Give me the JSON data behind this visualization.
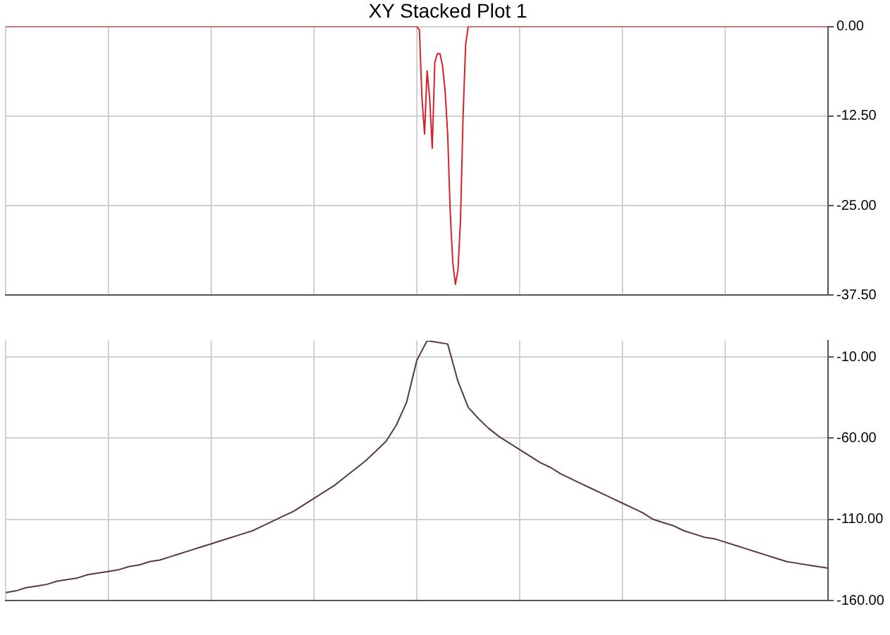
{
  "chart_data": [
    {
      "type": "line",
      "title": "XY Stacked Plot 1",
      "categories": [
        null,
        null,
        null,
        null,
        null,
        null,
        null,
        null,
        null,
        null,
        null,
        null,
        null,
        null,
        null,
        null,
        null,
        null,
        null,
        null,
        null,
        null,
        null,
        null,
        null,
        null,
        null,
        null,
        null,
        null,
        null,
        null,
        null,
        null,
        null,
        null,
        null,
        null,
        null,
        null,
        null,
        null,
        null,
        null,
        null,
        null,
        null,
        null,
        null,
        null,
        null,
        null,
        null,
        null,
        null,
        null,
        null,
        null,
        null,
        null,
        null,
        null,
        null,
        null,
        null,
        null,
        null,
        null,
        null,
        null,
        null,
        null,
        null,
        null,
        null,
        null,
        null,
        null,
        null,
        null,
        null,
        null,
        null,
        null,
        null,
        null,
        null,
        null,
        null,
        null,
        null,
        null,
        null,
        null,
        null,
        null,
        null,
        null,
        null,
        null,
        null,
        null,
        null,
        null,
        null,
        null,
        null,
        null,
        null,
        null,
        null,
        null,
        null,
        null,
        null,
        null,
        null,
        null,
        null,
        null,
        null,
        null,
        null,
        null,
        null,
        null,
        null,
        null,
        null,
        null,
        null,
        null,
        null,
        null,
        null,
        null,
        null,
        null,
        null,
        null,
        null,
        null,
        null,
        null,
        null,
        null,
        null,
        null,
        null,
        null,
        null,
        null,
        null,
        null,
        null,
        null,
        null,
        null,
        null,
        null,
        null,
        null,
        null,
        null,
        null,
        null,
        null,
        null,
        null,
        null,
        null,
        null,
        null,
        null,
        null,
        null,
        null,
        null,
        null,
        null,
        null,
        null,
        null,
        null,
        null,
        null,
        null,
        null,
        null,
        null,
        null,
        null,
        null,
        null,
        null,
        null,
        null,
        null,
        null,
        null,
        null,
        null,
        null,
        null,
        null,
        null,
        null,
        null,
        null,
        null,
        null,
        null,
        null,
        null,
        null,
        null,
        null,
        null,
        null,
        null,
        null,
        null,
        null,
        null,
        null,
        null,
        null,
        null,
        null,
        null,
        null,
        null,
        null,
        null,
        null,
        null,
        null,
        null,
        null,
        null,
        null,
        null,
        null,
        null,
        null,
        null,
        null,
        null,
        null,
        null,
        null,
        null,
        null,
        null,
        null,
        null,
        null,
        null,
        null,
        null,
        null,
        null,
        null,
        null,
        null,
        null,
        null,
        null,
        null,
        null,
        null,
        null,
        null,
        null,
        null,
        null,
        null,
        null,
        null,
        null,
        null,
        null,
        null,
        null,
        null,
        null,
        null,
        null,
        null,
        null,
        null,
        null,
        null,
        null,
        null,
        null,
        null,
        null,
        null,
        null,
        null,
        null,
        null,
        null,
        null,
        null,
        null,
        null,
        null,
        null,
        null,
        null,
        null,
        null,
        null,
        null,
        null,
        null,
        null,
        null,
        null
      ],
      "ylim": [
        -37.5,
        0
      ],
      "yticks": [
        {
          "value": 0,
          "label": "0.00"
        },
        {
          "value": -12.5,
          "label": "-12.50"
        },
        {
          "value": -25,
          "label": "-25.00"
        },
        {
          "value": -37.5,
          "label": "-37.50"
        }
      ],
      "grid": true,
      "marker": "none",
      "line_style": "solid",
      "series": [
        {
          "color": "#d9202a",
          "values": [
            0,
            0,
            0,
            0,
            0,
            0,
            0,
            0,
            0,
            0,
            0,
            0,
            0,
            0,
            0,
            0,
            0,
            0,
            0,
            0,
            0,
            0,
            0,
            0,
            0,
            0,
            0,
            0,
            0,
            0,
            0,
            0,
            0,
            0,
            0,
            0,
            0,
            0,
            0,
            0,
            0,
            0,
            0,
            0,
            0,
            0,
            0,
            0,
            0,
            0,
            0,
            0,
            0,
            0,
            0,
            0,
            0,
            0,
            0,
            0,
            0,
            0,
            0,
            0,
            0,
            0,
            0,
            0,
            0,
            0,
            0,
            0,
            0,
            0,
            0,
            0,
            0,
            0,
            0,
            0,
            0,
            0,
            0,
            0,
            0,
            0,
            0,
            0,
            0,
            0,
            0,
            0,
            0,
            0,
            0,
            0,
            0,
            0,
            0,
            0,
            0,
            0,
            0,
            0,
            0,
            0,
            0,
            0,
            0,
            0,
            0,
            0,
            0,
            0,
            0,
            0,
            0,
            0,
            0,
            0,
            0,
            0,
            0,
            0,
            0,
            0,
            0,
            0,
            0,
            0,
            0,
            0,
            0,
            0,
            0,
            0,
            0,
            0,
            0,
            0,
            0,
            0,
            0,
            0,
            0,
            0,
            0,
            0,
            0,
            0,
            0,
            0,
            0,
            0,
            0,
            0,
            0,
            0,
            0,
            0,
            0,
            -0.5,
            -10,
            -15,
            -6.2,
            -10,
            -17,
            -5,
            -3.8,
            -3.8,
            -5.5,
            -9,
            -15,
            -26,
            -33,
            -36,
            -34,
            -27,
            -12.4,
            -2.5,
            0,
            0,
            0,
            0,
            0,
            0,
            0,
            0,
            0,
            0,
            0,
            0,
            0,
            0,
            0,
            0,
            0,
            0,
            0,
            0,
            0,
            0,
            0,
            0,
            0,
            0,
            0,
            0,
            0,
            0,
            0,
            0,
            0,
            0,
            0,
            0,
            0,
            0,
            0,
            0,
            0,
            0,
            0,
            0,
            0,
            0,
            0,
            0,
            0,
            0,
            0,
            0,
            0,
            0,
            0,
            0,
            0,
            0,
            0,
            0,
            0,
            0,
            0,
            0,
            0,
            0,
            0,
            0,
            0,
            0,
            0,
            0,
            0,
            0,
            0,
            0,
            0,
            0,
            0,
            0,
            0,
            0,
            0,
            0,
            0,
            0,
            0,
            0,
            0,
            0,
            0,
            0,
            0,
            0,
            0,
            0,
            0,
            0,
            0,
            0,
            0,
            0,
            0,
            0,
            0,
            0,
            0,
            0,
            0,
            0,
            0,
            0,
            0,
            0,
            0,
            0,
            0,
            0,
            0,
            0,
            0,
            0,
            0,
            0,
            0,
            0,
            0,
            0,
            0,
            0,
            0,
            0,
            0,
            0,
            0,
            0,
            0,
            0,
            0,
            0,
            0
          ]
        }
      ]
    },
    {
      "type": "line",
      "categories": [
        null,
        null,
        null,
        null,
        null,
        null,
        null,
        null,
        null,
        null,
        null,
        null,
        null,
        null,
        null,
        null,
        null,
        null,
        null,
        null,
        null,
        null,
        null,
        null,
        null,
        null,
        null,
        null,
        null,
        null,
        null,
        null,
        null,
        null,
        null,
        null,
        null,
        null,
        null,
        null,
        null,
        null,
        null,
        null,
        null,
        null,
        null,
        null,
        null,
        null,
        null,
        null,
        null,
        null,
        null,
        null,
        null,
        null,
        null,
        null,
        null,
        null,
        null,
        null,
        null,
        null,
        null,
        null,
        null,
        null,
        null,
        null,
        null,
        null,
        null,
        null,
        null,
        null,
        null,
        null,
        null
      ],
      "ylim": [
        -160,
        0
      ],
      "yticks": [
        {
          "value": -10,
          "label": "-10.00"
        },
        {
          "value": -60,
          "label": "-60.00"
        },
        {
          "value": -110,
          "label": "-110.00"
        },
        {
          "value": -160,
          "label": "-160.00"
        }
      ],
      "grid": true,
      "marker": "none",
      "line_style": "solid",
      "series": [
        {
          "color": "#5a3a3a",
          "values": [
            -155,
            -154,
            -152,
            -151,
            -150,
            -148,
            -147,
            -146,
            -144,
            -143,
            -142,
            -141,
            -139,
            -138,
            -136,
            -135,
            -133,
            -131,
            -129,
            -127,
            -125,
            -123,
            -121,
            -119,
            -117,
            -114,
            -111,
            -108,
            -105,
            -101,
            -97,
            -93,
            -89,
            -84,
            -79,
            -74,
            -68,
            -62,
            -52,
            -38,
            -12,
            0,
            -1,
            -2,
            -25,
            -41,
            -48,
            -54,
            -59,
            -63,
            -67,
            -71,
            -75,
            -78,
            -82,
            -85,
            -88,
            -91,
            -94,
            -97,
            -100,
            -103,
            -106,
            -110,
            -112,
            -114,
            -117,
            -119,
            -121,
            -122,
            -124,
            -126,
            -128,
            -130,
            -132,
            -134,
            -136,
            -137,
            -138,
            -139,
            -140
          ]
        }
      ]
    }
  ]
}
